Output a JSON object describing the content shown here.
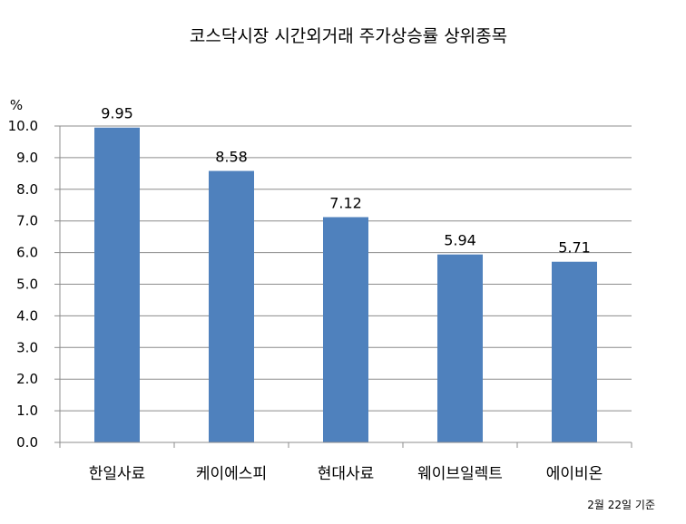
{
  "chart_data": {
    "type": "bar",
    "title": "코스닥시장 시간외거래  주가상승률 상위종목",
    "ylabel": "%",
    "categories": [
      "한일사료",
      "케이에스피",
      "현대사료",
      "웨이브일렉트",
      "에이비온"
    ],
    "values": [
      9.95,
      8.58,
      7.12,
      5.94,
      5.71
    ],
    "value_labels": [
      "9.95",
      "8.58",
      "7.12",
      "5.94",
      "5.71"
    ],
    "ylim": [
      0,
      10
    ],
    "yticks": [
      "0.0",
      "1.0",
      "2.0",
      "3.0",
      "4.0",
      "5.0",
      "6.0",
      "7.0",
      "8.0",
      "9.0",
      "10.0"
    ],
    "grid": true,
    "legend": "none",
    "bar_color": "#4F81BD",
    "note": "2월 22일 기준"
  }
}
